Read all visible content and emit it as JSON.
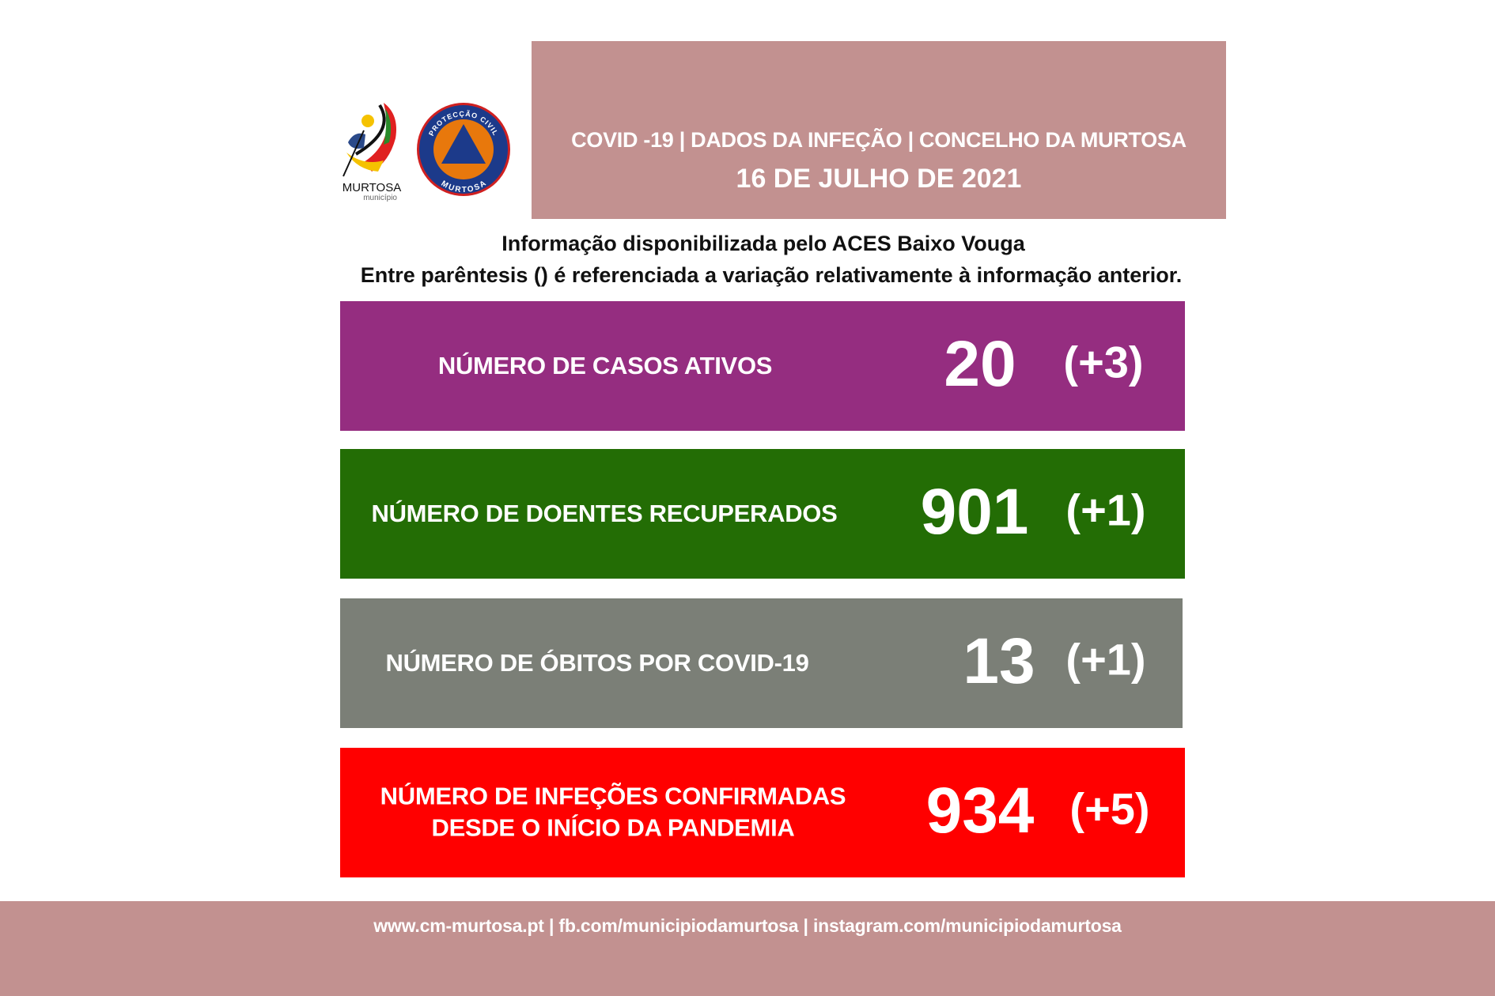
{
  "header": {
    "title": "COVID -19 | DADOS DA INFEÇÃO | CONCELHO DA MURTOSA",
    "date": "16 DE JULHO DE 2021"
  },
  "logos": {
    "municipality": {
      "text": "MURTOSA",
      "subtext": "município"
    },
    "civil_protection": {
      "top_text": "PROTECÇÃO CIVIL",
      "bottom_text": "MURTOSA"
    }
  },
  "info": {
    "line1": "Informação disponibilizada pelo ACES Baixo Vouga",
    "line2": "Entre parêntesis () é referenciada a variação relativamente à informação anterior."
  },
  "stats": [
    {
      "label": "NÚMERO DE CASOS ATIVOS",
      "value": "20",
      "variation": "(+3)",
      "color": "#952d80"
    },
    {
      "label": "NÚMERO DE DOENTES RECUPERADOS",
      "value": "901",
      "variation": "(+1)",
      "color": "#236d05"
    },
    {
      "label": "NÚMERO DE ÓBITOS POR COVID-19",
      "value": "13",
      "variation": "(+1)",
      "color": "#7b7f77"
    },
    {
      "label_line1": "NÚMERO DE INFEÇÕES CONFIRMADAS",
      "label_line2": "DESDE O INÍCIO DA PANDEMIA",
      "value": "934",
      "variation": "(+5)",
      "color": "#ff0000"
    }
  ],
  "footer": {
    "text": "www.cm-murtosa.pt  | fb.com/municipiodamurtosa | instagram.com/municipiodamurtosa"
  },
  "colors": {
    "header_bg": "#c29190",
    "footer_bg": "#c29190"
  }
}
